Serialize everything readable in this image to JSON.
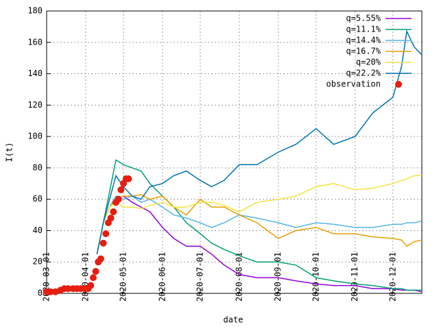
{
  "chart_data": {
    "type": "line",
    "xlabel": "date",
    "ylabel": "I(t)",
    "xlim": [
      "2020-03-01",
      "2020-12-24"
    ],
    "xticks": [
      "2020-03-01",
      "2020-04-01",
      "2020-05-01",
      "2020-06-01",
      "2020-07-01",
      "2020-08-01",
      "2020-09-01",
      "2020-10-01",
      "2020-11-01",
      "2020-12-01"
    ],
    "ylim": [
      0,
      180
    ],
    "yticks": [
      0,
      20,
      40,
      60,
      80,
      100,
      120,
      140,
      160,
      180
    ],
    "grid": true,
    "legend": "top-right",
    "x": [
      "2020-04-10",
      "2020-04-15",
      "2020-04-20",
      "2020-04-25",
      "2020-05-01",
      "2020-05-08",
      "2020-05-15",
      "2020-05-22",
      "2020-06-01",
      "2020-06-10",
      "2020-06-20",
      "2020-07-01",
      "2020-07-10",
      "2020-07-20",
      "2020-08-01",
      "2020-08-15",
      "2020-09-01",
      "2020-09-15",
      "2020-10-01",
      "2020-10-15",
      "2020-11-01",
      "2020-11-15",
      "2020-12-01",
      "2020-12-08",
      "2020-12-12",
      "2020-12-18",
      "2020-12-24"
    ],
    "series": [
      {
        "name": "q=5.55%",
        "color": "#9400d3",
        "values": [
          25,
          45,
          55,
          60,
          62,
          58,
          55,
          52,
          42,
          35,
          30,
          30,
          25,
          18,
          12,
          10,
          10,
          8,
          6,
          5,
          5,
          3,
          3,
          2,
          2,
          2,
          1
        ]
      },
      {
        "name": "q=11.1%",
        "color": "#009e73",
        "values": [
          25,
          45,
          65,
          85,
          82,
          80,
          78,
          70,
          62,
          55,
          45,
          38,
          32,
          28,
          24,
          20,
          20,
          18,
          10,
          8,
          6,
          5,
          3,
          3,
          2,
          2,
          2
        ]
      },
      {
        "name": "q=14.4%",
        "color": "#56b4e9",
        "values": [
          25,
          45,
          55,
          62,
          60,
          62,
          58,
          60,
          55,
          50,
          48,
          45,
          42,
          45,
          50,
          48,
          45,
          42,
          45,
          44,
          42,
          42,
          44,
          44,
          45,
          45,
          46
        ]
      },
      {
        "name": "q=16.7%",
        "color": "#e69f00",
        "values": [
          25,
          45,
          55,
          60,
          62,
          62,
          63,
          60,
          62,
          55,
          50,
          60,
          55,
          55,
          50,
          45,
          35,
          40,
          42,
          38,
          38,
          36,
          35,
          34,
          30,
          33,
          34
        ]
      },
      {
        "name": "q=20%",
        "color": "#f0e442",
        "values": [
          25,
          45,
          55,
          58,
          55,
          55,
          54,
          56,
          58,
          55,
          55,
          58,
          58,
          56,
          52,
          58,
          60,
          62,
          68,
          70,
          66,
          67,
          70,
          72,
          73,
          75,
          75
        ]
      },
      {
        "name": "q=22.2%",
        "color": "#0072b2",
        "values": [
          25,
          45,
          60,
          75,
          68,
          62,
          60,
          68,
          70,
          75,
          78,
          72,
          68,
          72,
          82,
          82,
          90,
          95,
          105,
          95,
          100,
          115,
          125,
          145,
          167,
          157,
          152
        ]
      },
      {
        "name": "observation",
        "color": "#e51e10",
        "marker": "circle",
        "x": [
          "2020-03-01",
          "2020-03-04",
          "2020-03-08",
          "2020-03-12",
          "2020-03-15",
          "2020-03-18",
          "2020-03-22",
          "2020-03-25",
          "2020-03-28",
          "2020-03-31",
          "2020-04-03",
          "2020-04-05",
          "2020-04-07",
          "2020-04-09",
          "2020-04-11",
          "2020-04-13",
          "2020-04-15",
          "2020-04-17",
          "2020-04-19",
          "2020-04-21",
          "2020-04-23",
          "2020-04-25",
          "2020-04-27",
          "2020-04-29",
          "2020-05-01",
          "2020-05-03",
          "2020-05-05"
        ],
        "values": [
          1,
          1,
          1,
          2,
          3,
          3,
          3,
          3,
          3,
          3,
          3,
          5,
          10,
          14,
          20,
          22,
          32,
          38,
          45,
          48,
          52,
          58,
          60,
          66,
          70,
          73,
          73
        ]
      }
    ]
  }
}
